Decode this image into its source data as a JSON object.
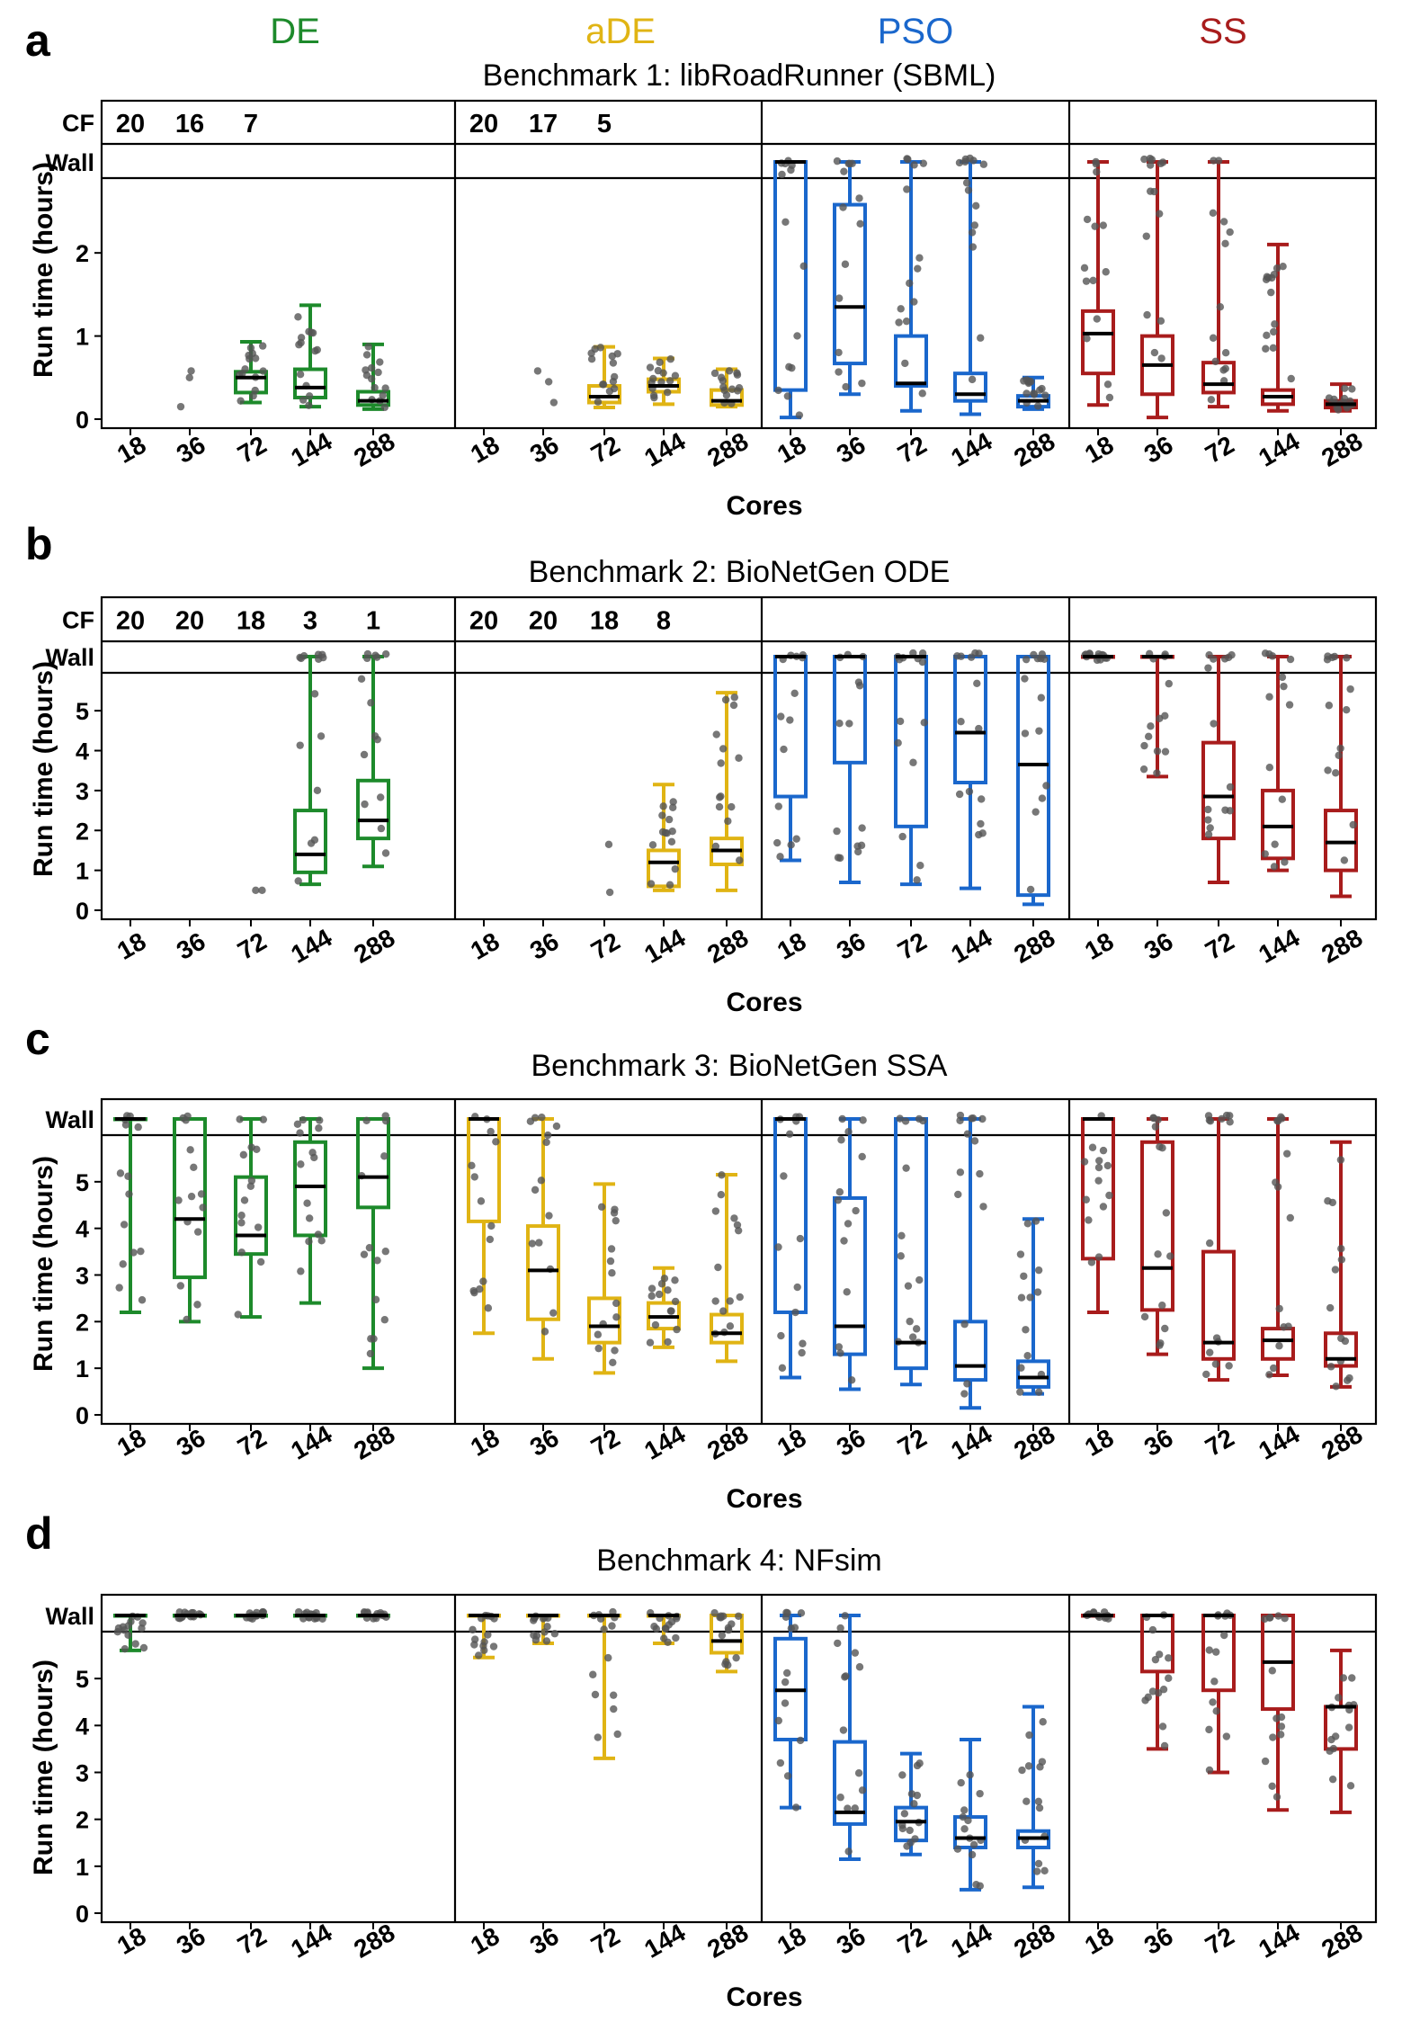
{
  "methods": [
    {
      "name": "DE",
      "color": "#1d8a2b"
    },
    {
      "name": "aDE",
      "color": "#e0b414"
    },
    {
      "name": "PSO",
      "color": "#1a67cc"
    },
    {
      "name": "SS",
      "color": "#a81c1c"
    }
  ],
  "labels": {
    "wall": "Wall",
    "cf": "CF",
    "ylabel": "Run time (hours)",
    "xlabel": "Cores"
  },
  "chart_data": [
    {
      "type": "box",
      "panel": "a",
      "title": "Benchmark 1: libRoadRunner (SBML)",
      "categories": [
        "18",
        "36",
        "72",
        "144",
        "288"
      ],
      "yticks": [
        0,
        1,
        2
      ],
      "ylim": [
        0,
        2.9
      ],
      "cf": [
        [
          "20",
          "16",
          "7",
          "",
          ""
        ],
        [
          "20",
          "17",
          "5",
          "",
          ""
        ],
        [
          "",
          "",
          "",
          "",
          ""
        ],
        [
          "",
          "",
          "",
          "",
          ""
        ]
      ],
      "boxes": [
        [
          null,
          null,
          {
            "min": 0.2,
            "q1": 0.32,
            "med": 0.5,
            "q3": 0.57,
            "max": 0.93
          },
          {
            "min": 0.15,
            "q1": 0.26,
            "med": 0.38,
            "q3": 0.6,
            "max": 1.37
          },
          {
            "min": 0.12,
            "q1": 0.17,
            "med": 0.22,
            "q3": 0.33,
            "max": 0.9
          }
        ],
        [
          null,
          null,
          {
            "min": 0.14,
            "q1": 0.2,
            "med": 0.27,
            "q3": 0.4,
            "max": 0.87
          },
          {
            "min": 0.18,
            "q1": 0.33,
            "med": 0.4,
            "q3": 0.48,
            "max": 0.73
          },
          {
            "min": 0.15,
            "q1": 0.17,
            "med": 0.22,
            "q3": 0.35,
            "max": 0.6
          }
        ],
        [
          {
            "min": 0.02,
            "q1": 0.35,
            "med": "wall",
            "q3": "wall",
            "max": "wall"
          },
          {
            "min": 0.3,
            "q1": 0.67,
            "med": 1.35,
            "q3": 2.58,
            "max": "wall"
          },
          {
            "min": 0.1,
            "q1": 0.4,
            "med": 0.43,
            "q3": 1.0,
            "max": "wall"
          },
          {
            "min": 0.06,
            "q1": 0.22,
            "med": 0.3,
            "q3": 0.55,
            "max": "wall"
          },
          {
            "min": 0.12,
            "q1": 0.15,
            "med": 0.22,
            "q3": 0.28,
            "max": 0.5
          }
        ],
        [
          {
            "min": 0.17,
            "q1": 0.55,
            "med": 1.03,
            "q3": 1.3,
            "max": "wall"
          },
          {
            "min": 0.02,
            "q1": 0.3,
            "med": 0.65,
            "q3": 1.0,
            "max": "wall"
          },
          {
            "min": 0.15,
            "q1": 0.32,
            "med": 0.42,
            "q3": 0.68,
            "max": "wall"
          },
          {
            "min": 0.1,
            "q1": 0.18,
            "med": 0.27,
            "q3": 0.35,
            "max": 2.1
          },
          {
            "min": 0.1,
            "q1": 0.14,
            "med": 0.18,
            "q3": 0.22,
            "max": 0.42
          }
        ]
      ],
      "outliers": [
        [
          [],
          [
            0.5,
            0.58,
            0.15
          ],
          [],
          [],
          []
        ],
        [
          [],
          [
            0.45,
            0.58,
            0.2
          ],
          [],
          [],
          []
        ],
        [
          [],
          [],
          [],
          [],
          []
        ],
        [
          [],
          [],
          [],
          [],
          []
        ]
      ]
    },
    {
      "type": "box",
      "panel": "b",
      "title": "Benchmark 2: BioNetGen ODE",
      "categories": [
        "18",
        "36",
        "72",
        "144",
        "288"
      ],
      "yticks": [
        0,
        1,
        2,
        3,
        4,
        5
      ],
      "ylim": [
        0,
        5.95
      ],
      "cf": [
        [
          "20",
          "20",
          "18",
          "3",
          "1"
        ],
        [
          "20",
          "20",
          "18",
          "8",
          ""
        ],
        [
          "",
          "",
          "",
          "",
          ""
        ],
        [
          "",
          "",
          "",
          "",
          ""
        ]
      ],
      "boxes": [
        [
          null,
          null,
          null,
          {
            "min": 0.65,
            "q1": 0.95,
            "med": 1.4,
            "q3": 2.5,
            "max": "wall"
          },
          {
            "min": 1.1,
            "q1": 1.8,
            "med": 2.25,
            "q3": 3.25,
            "max": "wall"
          }
        ],
        [
          null,
          null,
          null,
          {
            "min": 0.5,
            "q1": 0.6,
            "med": 1.2,
            "q3": 1.5,
            "max": 3.15
          },
          {
            "min": 0.5,
            "q1": 1.15,
            "med": 1.5,
            "q3": 1.8,
            "max": 5.45
          }
        ],
        [
          {
            "min": 1.25,
            "q1": 2.85,
            "med": "wall",
            "q3": "wall",
            "max": "wall"
          },
          {
            "min": 0.7,
            "q1": 3.7,
            "med": "wall",
            "q3": "wall",
            "max": "wall"
          },
          {
            "min": 0.65,
            "q1": 2.1,
            "med": "wall",
            "q3": "wall",
            "max": "wall"
          },
          {
            "min": 0.55,
            "q1": 3.2,
            "med": 4.45,
            "q3": "wall",
            "max": "wall"
          },
          {
            "min": 0.15,
            "q1": 0.38,
            "med": 3.65,
            "q3": "wall",
            "max": "wall"
          }
        ],
        [
          {
            "min": "wall",
            "q1": "wall",
            "med": "wall",
            "q3": "wall",
            "max": "wall"
          },
          {
            "min": 3.35,
            "q1": "wall",
            "med": "wall",
            "q3": "wall",
            "max": "wall"
          },
          {
            "min": 0.7,
            "q1": 1.8,
            "med": 2.85,
            "q3": 4.2,
            "max": "wall"
          },
          {
            "min": 1.0,
            "q1": 1.3,
            "med": 2.1,
            "q3": 3.0,
            "max": "wall"
          },
          {
            "min": 0.35,
            "q1": 1.0,
            "med": 1.7,
            "q3": 2.5,
            "max": "wall"
          }
        ]
      ],
      "outliers": [
        [
          [],
          [],
          [
            0.5,
            0.5
          ],
          [],
          []
        ],
        [
          [],
          [],
          [
            0.45,
            1.65
          ],
          [],
          []
        ],
        [
          [],
          [],
          [],
          [],
          []
        ],
        [
          [],
          [],
          [],
          [],
          []
        ]
      ]
    },
    {
      "type": "box",
      "panel": "c",
      "title": "Benchmark 3: BioNetGen SSA",
      "categories": [
        "18",
        "36",
        "72",
        "144",
        "288"
      ],
      "yticks": [
        0,
        1,
        2,
        3,
        4,
        5
      ],
      "ylim": [
        0,
        6.0
      ],
      "cf": null,
      "boxes": [
        [
          {
            "min": 2.2,
            "q1": "wall",
            "med": "wall",
            "q3": "wall",
            "max": "wall"
          },
          {
            "min": 2.0,
            "q1": 2.95,
            "med": 4.2,
            "q3": "wall",
            "max": "wall"
          },
          {
            "min": 2.1,
            "q1": 3.45,
            "med": 3.85,
            "q3": 5.1,
            "max": "wall"
          },
          {
            "min": 2.4,
            "q1": 3.85,
            "med": 4.9,
            "q3": 5.85,
            "max": "wall"
          },
          {
            "min": 1.0,
            "q1": 4.45,
            "med": 5.1,
            "q3": "wall",
            "max": "wall"
          }
        ],
        [
          {
            "min": 1.75,
            "q1": 4.15,
            "med": "wall",
            "q3": "wall",
            "max": "wall"
          },
          {
            "min": 1.2,
            "q1": 2.05,
            "med": 3.1,
            "q3": 4.05,
            "max": "wall"
          },
          {
            "min": 0.9,
            "q1": 1.55,
            "med": 1.9,
            "q3": 2.5,
            "max": 4.95
          },
          {
            "min": 1.45,
            "q1": 1.85,
            "med": 2.1,
            "q3": 2.4,
            "max": 3.15
          },
          {
            "min": 1.15,
            "q1": 1.55,
            "med": 1.75,
            "q3": 2.15,
            "max": 5.15
          }
        ],
        [
          {
            "min": 0.8,
            "q1": 2.2,
            "med": "wall",
            "q3": "wall",
            "max": "wall"
          },
          {
            "min": 0.55,
            "q1": 1.3,
            "med": 1.9,
            "q3": 4.65,
            "max": "wall"
          },
          {
            "min": 0.65,
            "q1": 1.0,
            "med": 1.55,
            "q3": "wall",
            "max": "wall"
          },
          {
            "min": 0.15,
            "q1": 0.75,
            "med": 1.05,
            "q3": 2.0,
            "max": "wall"
          },
          {
            "min": 0.45,
            "q1": 0.6,
            "med": 0.8,
            "q3": 1.15,
            "max": 4.2
          }
        ],
        [
          {
            "min": 2.2,
            "q1": 3.35,
            "med": "wall",
            "q3": "wall",
            "max": "wall"
          },
          {
            "min": 1.3,
            "q1": 2.25,
            "med": 3.15,
            "q3": 5.85,
            "max": "wall"
          },
          {
            "min": 0.75,
            "q1": 1.2,
            "med": 1.55,
            "q3": 3.5,
            "max": "wall"
          },
          {
            "min": 0.85,
            "q1": 1.2,
            "med": 1.6,
            "q3": 1.85,
            "max": "wall"
          },
          {
            "min": 0.6,
            "q1": 1.05,
            "med": 1.2,
            "q3": 1.75,
            "max": 5.85
          }
        ]
      ],
      "outliers": [
        [
          [],
          [],
          [],
          [],
          []
        ],
        [
          [],
          [],
          [],
          [],
          []
        ],
        [
          [],
          [],
          [],
          [],
          []
        ],
        [
          [],
          [],
          [],
          [],
          []
        ]
      ]
    },
    {
      "type": "box",
      "panel": "d",
      "title": "Benchmark 4: NFsim",
      "categories": [
        "18",
        "36",
        "72",
        "144",
        "288"
      ],
      "yticks": [
        0,
        1,
        2,
        3,
        4,
        5
      ],
      "ylim": [
        0,
        6.0
      ],
      "cf": null,
      "boxes": [
        [
          {
            "min": 5.6,
            "q1": "wall",
            "med": "wall",
            "q3": "wall",
            "max": "wall"
          },
          {
            "min": "wall",
            "q1": "wall",
            "med": "wall",
            "q3": "wall",
            "max": "wall"
          },
          {
            "min": "wall",
            "q1": "wall",
            "med": "wall",
            "q3": "wall",
            "max": "wall"
          },
          {
            "min": "wall",
            "q1": "wall",
            "med": "wall",
            "q3": "wall",
            "max": "wall"
          },
          {
            "min": "wall",
            "q1": "wall",
            "med": "wall",
            "q3": "wall",
            "max": "wall"
          }
        ],
        [
          {
            "min": 5.45,
            "q1": "wall",
            "med": "wall",
            "q3": "wall",
            "max": "wall"
          },
          {
            "min": 5.75,
            "q1": "wall",
            "med": "wall",
            "q3": "wall",
            "max": "wall"
          },
          {
            "min": 3.3,
            "q1": "wall",
            "med": "wall",
            "q3": "wall",
            "max": "wall"
          },
          {
            "min": 5.75,
            "q1": "wall",
            "med": "wall",
            "q3": "wall",
            "max": "wall"
          },
          {
            "min": 5.15,
            "q1": 5.55,
            "med": 5.8,
            "q3": "wall",
            "max": "wall"
          }
        ],
        [
          {
            "min": 2.25,
            "q1": 3.7,
            "med": 4.75,
            "q3": 5.85,
            "max": "wall"
          },
          {
            "min": 1.15,
            "q1": 1.9,
            "med": 2.15,
            "q3": 3.65,
            "max": "wall"
          },
          {
            "min": 1.25,
            "q1": 1.55,
            "med": 1.95,
            "q3": 2.25,
            "max": 3.4
          },
          {
            "min": 0.5,
            "q1": 1.4,
            "med": 1.6,
            "q3": 2.05,
            "max": 3.7
          },
          {
            "min": 0.55,
            "q1": 1.4,
            "med": 1.6,
            "q3": 1.75,
            "max": 4.4
          }
        ],
        [
          {
            "min": "wall",
            "q1": "wall",
            "med": "wall",
            "q3": "wall",
            "max": "wall"
          },
          {
            "min": 3.5,
            "q1": 5.15,
            "med": "wall",
            "q3": "wall",
            "max": "wall"
          },
          {
            "min": 3.0,
            "q1": 4.75,
            "med": "wall",
            "q3": "wall",
            "max": "wall"
          },
          {
            "min": 2.2,
            "q1": 4.35,
            "med": 5.35,
            "q3": "wall",
            "max": "wall"
          },
          {
            "min": 2.15,
            "q1": 3.5,
            "med": 4.4,
            "q3": 4.4,
            "max": 5.6
          }
        ]
      ],
      "outliers": [
        [
          [],
          [],
          [],
          [],
          []
        ],
        [
          [],
          [],
          [],
          [],
          []
        ],
        [
          [],
          [],
          [],
          [],
          []
        ],
        [
          [],
          [],
          [],
          [],
          []
        ]
      ]
    }
  ]
}
